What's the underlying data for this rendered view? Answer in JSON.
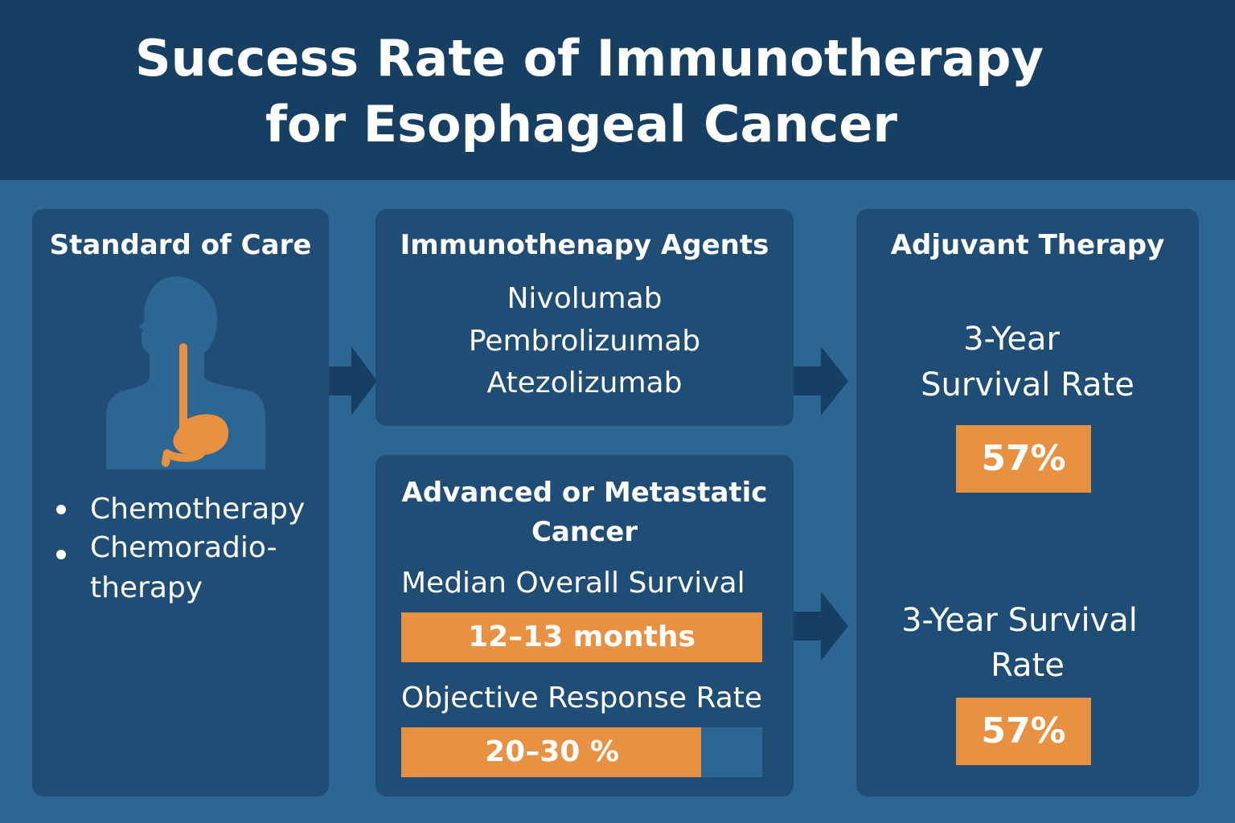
{
  "title": {
    "line1": "Success Rate of Immunotherapy",
    "line2": "for Esophageal Cancer"
  },
  "colors": {
    "header": "#173f63",
    "background": "#2d6593",
    "panel": "#1f4d76",
    "accent": "#e99142",
    "arrow": "#173f63"
  },
  "standard_of_care": {
    "heading": "Standard of Care",
    "icon": "human-silhouette-esophagus-icon",
    "items": [
      "Chemotherapy",
      "Chemoradio-",
      "therapy"
    ]
  },
  "agents": {
    "heading": "Immunothenapy Agents",
    "list": [
      "Nivolumab",
      "Pembrolizuımab",
      "Atezolizumab"
    ]
  },
  "advanced": {
    "heading_line1": "Advanced or Metastatic",
    "heading_line2": "Cancer",
    "median_label": "Median Overall Survival",
    "median_value": "12–13 months",
    "median_fill": 1.0,
    "response_label": "Objective Response Rate",
    "response_value": "20–30 %",
    "response_fill": 0.83
  },
  "adjuvant": {
    "heading": "Adjuvant Therapy",
    "rate1_line1": "3-Year",
    "rate1_line2": "Survival Rate",
    "rate1_value": "57%",
    "rate2_line1": "3-Year Survival",
    "rate2_line2": "Rate",
    "rate2_value": "57%"
  }
}
